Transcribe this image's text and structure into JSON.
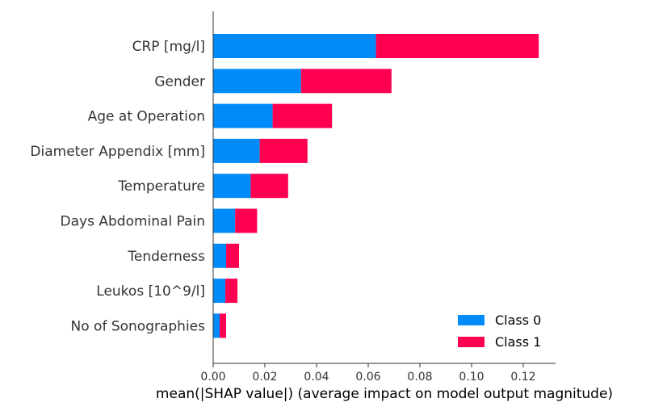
{
  "chart_data": {
    "type": "bar",
    "orientation": "horizontal",
    "stacked": true,
    "categories": [
      "CRP [mg/l]",
      "Gender",
      "Age at Operation",
      "Diameter Appendix [mm]",
      "Temperature",
      "Days Abdominal Pain",
      "Tenderness",
      "Leukos [10^9/l]",
      "No of Sonographies"
    ],
    "series": [
      {
        "name": "Class 0",
        "color": "#008bfb",
        "values": [
          0.063,
          0.034,
          0.023,
          0.018,
          0.0145,
          0.0085,
          0.005,
          0.0047,
          0.0025
        ]
      },
      {
        "name": "Class 1",
        "color": "#ff0051",
        "values": [
          0.063,
          0.035,
          0.023,
          0.0185,
          0.0145,
          0.0085,
          0.005,
          0.0047,
          0.0025
        ]
      }
    ],
    "xlabel": "mean(|SHAP value|) (average impact on model output magnitude)",
    "xticks": [
      "0.00",
      "0.02",
      "0.04",
      "0.06",
      "0.08",
      "0.10",
      "0.12"
    ],
    "xtick_values": [
      0,
      0.02,
      0.04,
      0.06,
      0.08,
      0.1,
      0.12
    ],
    "xlim": [
      0,
      0.1325
    ],
    "grid": false,
    "legend_position": "bottom-right"
  }
}
